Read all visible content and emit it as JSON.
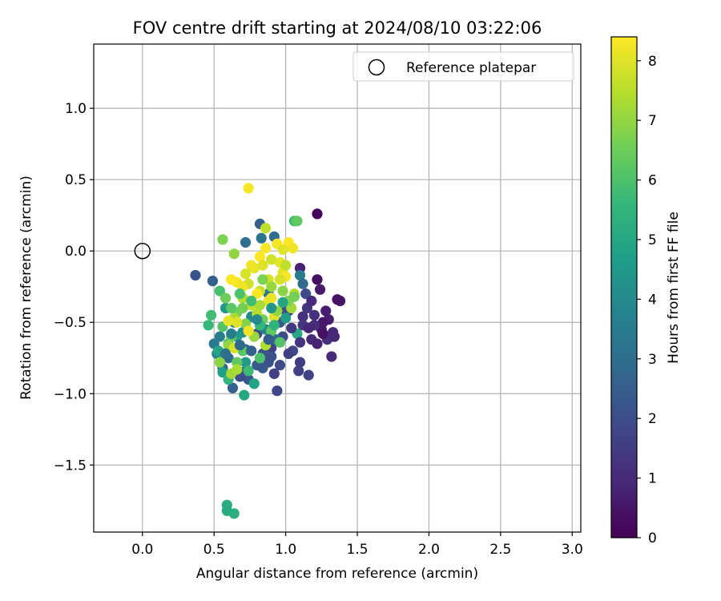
{
  "chart_data": {
    "type": "scatter",
    "title": "FOV centre drift starting at 2024/08/10 03:22:06",
    "xlabel": "Angular distance from reference (arcmin)",
    "ylabel": "Rotation from reference (arcmin)",
    "xlim": [
      -0.34,
      3.06
    ],
    "ylim": [
      -1.97,
      1.45
    ],
    "xticks": [
      0.0,
      0.5,
      1.0,
      1.5,
      2.0,
      2.5,
      3.0
    ],
    "xtick_labels": [
      "0.0",
      "0.5",
      "1.0",
      "1.5",
      "2.0",
      "2.5",
      "3.0"
    ],
    "yticks": [
      1.0,
      0.5,
      0.0,
      -0.5,
      -1.0,
      -1.5
    ],
    "ytick_labels": [
      "1.0",
      "0.5",
      "0.0",
      "−0.5",
      "−1.0",
      "−1.5"
    ],
    "grid": true,
    "legend": {
      "position": "top-right",
      "entries": [
        {
          "label": "Reference platepar",
          "marker": "open-circle"
        }
      ]
    },
    "reference_point": {
      "x": 0.0,
      "y": 0.0,
      "label": "Reference platepar"
    },
    "colorbar": {
      "label": "Hours from first FF file",
      "colormap": "viridis",
      "range": [
        0,
        8.4
      ],
      "ticks": [
        0,
        1,
        2,
        3,
        4,
        5,
        6,
        7,
        8
      ],
      "tick_labels": [
        "0",
        "1",
        "2",
        "3",
        "4",
        "5",
        "6",
        "7",
        "8"
      ]
    },
    "series": [
      {
        "marker": "filled-circle",
        "columns": [
          "x",
          "y",
          "hours"
        ],
        "points": [
          [
            1.22,
            0.26,
            0.1
          ],
          [
            1.38,
            -0.35,
            0.5
          ],
          [
            1.36,
            -0.34,
            0.4
          ],
          [
            1.22,
            -0.2,
            0.3
          ],
          [
            1.24,
            -0.27,
            0.6
          ],
          [
            1.1,
            -0.12,
            0.8
          ],
          [
            1.3,
            -0.48,
            0.7
          ],
          [
            1.33,
            -0.57,
            0.9
          ],
          [
            1.32,
            -0.74,
            1.0
          ],
          [
            1.29,
            -0.62,
            1.1
          ],
          [
            1.25,
            -0.55,
            0.6
          ],
          [
            1.2,
            -0.45,
            1.2
          ],
          [
            1.15,
            -0.4,
            1.3
          ],
          [
            1.12,
            -0.52,
            1.4
          ],
          [
            1.18,
            -0.62,
            1.0
          ],
          [
            1.22,
            -0.65,
            0.8
          ],
          [
            1.1,
            -0.78,
            1.5
          ],
          [
            1.09,
            -0.84,
            1.6
          ],
          [
            1.16,
            -0.87,
            1.7
          ],
          [
            1.05,
            -0.7,
            1.8
          ],
          [
            1.26,
            -0.5,
            0.5
          ],
          [
            1.28,
            -0.42,
            0.7
          ],
          [
            1.14,
            -0.3,
            1.9
          ],
          [
            1.2,
            -0.52,
            1.1
          ],
          [
            1.34,
            -0.6,
            0.9
          ],
          [
            1.26,
            -0.58,
            0.4
          ],
          [
            1.02,
            -0.42,
            1.5
          ],
          [
            0.98,
            -0.6,
            2.0
          ],
          [
            0.94,
            -0.98,
            1.8
          ],
          [
            0.92,
            -0.86,
            1.6
          ],
          [
            0.88,
            -0.78,
            2.1
          ],
          [
            0.84,
            -0.72,
            2.2
          ],
          [
            0.8,
            -0.8,
            2.4
          ],
          [
            0.74,
            -0.9,
            2.3
          ],
          [
            0.7,
            -0.85,
            2.5
          ],
          [
            0.68,
            -0.88,
            2.0
          ],
          [
            0.63,
            -0.96,
            2.6
          ],
          [
            0.56,
            -0.82,
            2.7
          ],
          [
            0.6,
            -0.75,
            2.8
          ],
          [
            0.37,
            -0.17,
            2.2
          ],
          [
            0.49,
            -0.21,
            2.6
          ],
          [
            0.82,
            0.19,
            2.5
          ],
          [
            0.72,
            -0.69,
            2.9
          ],
          [
            0.8,
            -0.58,
            1.9
          ],
          [
            0.9,
            -0.68,
            1.7
          ],
          [
            0.96,
            -0.5,
            2.3
          ],
          [
            1.0,
            -0.42,
            2.0
          ],
          [
            0.72,
            0.06,
            3.0
          ],
          [
            0.83,
            0.09,
            3.2
          ],
          [
            0.92,
            0.1,
            3.0
          ],
          [
            1.1,
            -0.17,
            3.5
          ],
          [
            1.12,
            -0.23,
            2.9
          ],
          [
            0.88,
            -0.3,
            3.3
          ],
          [
            0.54,
            -0.6,
            3.6
          ],
          [
            0.5,
            -0.65,
            3.4
          ],
          [
            0.52,
            -0.72,
            3.8
          ],
          [
            0.86,
            -0.55,
            3.9
          ],
          [
            0.93,
            -0.62,
            3.1
          ],
          [
            0.64,
            -0.5,
            3.7
          ],
          [
            0.76,
            -0.46,
            4.0
          ],
          [
            0.7,
            -0.57,
            4.2
          ],
          [
            0.58,
            -0.4,
            4.4
          ],
          [
            0.66,
            -0.6,
            4.6
          ],
          [
            0.72,
            -0.78,
            4.5
          ],
          [
            0.78,
            -0.93,
            4.8
          ],
          [
            0.71,
            -1.01,
            5.0
          ],
          [
            0.56,
            -0.85,
            4.7
          ],
          [
            0.53,
            -0.7,
            4.9
          ],
          [
            0.59,
            -1.78,
            5.2
          ],
          [
            0.64,
            -1.84,
            5.3
          ],
          [
            0.59,
            -1.82,
            5.1
          ],
          [
            0.6,
            -0.9,
            5.5
          ],
          [
            1.08,
            -0.58,
            5.0
          ],
          [
            1.0,
            -0.47,
            4.6
          ],
          [
            0.46,
            -0.52,
            5.6
          ],
          [
            0.48,
            -0.45,
            5.8
          ],
          [
            0.54,
            -0.28,
            5.9
          ],
          [
            0.6,
            -0.65,
            5.4
          ],
          [
            0.74,
            -0.84,
            5.7
          ],
          [
            0.82,
            -0.75,
            6.0
          ],
          [
            0.7,
            -0.7,
            6.2
          ],
          [
            0.66,
            -0.78,
            6.3
          ],
          [
            0.56,
            -0.53,
            6.1
          ],
          [
            0.62,
            -0.6,
            6.4
          ],
          [
            0.58,
            -0.33,
            6.5
          ],
          [
            0.66,
            -0.43,
            6.6
          ],
          [
            0.72,
            -0.51,
            6.8
          ],
          [
            0.84,
            -0.48,
            6.5
          ],
          [
            0.9,
            -0.56,
            6.3
          ],
          [
            0.96,
            -0.64,
            6.1
          ],
          [
            1.06,
            0.21,
            5.8
          ],
          [
            1.08,
            0.21,
            6.3
          ],
          [
            0.54,
            -0.78,
            6.9
          ],
          [
            0.6,
            -0.66,
            7.0
          ],
          [
            0.56,
            0.08,
            6.7
          ],
          [
            0.64,
            -0.02,
            7.0
          ],
          [
            0.62,
            -0.86,
            7.2
          ],
          [
            0.66,
            -0.83,
            7.3
          ],
          [
            0.78,
            -0.6,
            7.1
          ],
          [
            0.86,
            -0.66,
            7.4
          ],
          [
            0.8,
            -0.44,
            7.5
          ],
          [
            0.76,
            -0.38,
            7.6
          ],
          [
            0.7,
            -0.33,
            7.4
          ],
          [
            0.64,
            -0.47,
            7.3
          ],
          [
            0.74,
            -0.23,
            7.8
          ],
          [
            0.82,
            -0.28,
            7.7
          ],
          [
            0.88,
            -0.2,
            7.9
          ],
          [
            0.86,
            0.16,
            7.6
          ],
          [
            0.98,
            -0.15,
            8.1
          ],
          [
            1.0,
            -0.18,
            8.3
          ],
          [
            1.06,
            -0.3,
            7.5
          ],
          [
            1.04,
            -0.4,
            7.2
          ],
          [
            0.92,
            -0.46,
            8.0
          ],
          [
            0.9,
            -0.33,
            8.2
          ],
          [
            0.96,
            -0.08,
            8.1
          ],
          [
            0.94,
            0.05,
            8.3
          ],
          [
            1.02,
            0.06,
            8.4
          ],
          [
            1.05,
            0.02,
            8.2
          ],
          [
            0.98,
            0.01,
            8.0
          ],
          [
            0.86,
            0.02,
            8.3
          ],
          [
            0.82,
            -0.04,
            8.4
          ],
          [
            0.78,
            -0.12,
            8.1
          ],
          [
            0.66,
            -0.22,
            8.3
          ],
          [
            0.7,
            -0.25,
            8.2
          ],
          [
            0.62,
            -0.2,
            8.4
          ],
          [
            0.66,
            -0.5,
            8.0
          ],
          [
            0.74,
            0.44,
            8.3
          ],
          [
            0.74,
            -0.56,
            8.2
          ],
          [
            0.64,
            -0.68,
            7.9
          ],
          [
            0.6,
            -0.49,
            8.1
          ],
          [
            0.72,
            -0.16,
            7.9
          ],
          [
            0.84,
            -0.1,
            8.0
          ],
          [
            0.9,
            -0.06,
            7.8
          ],
          [
            1.0,
            -0.1,
            7.6
          ],
          [
            0.96,
            -0.2,
            7.9
          ],
          [
            0.88,
            -0.35,
            8.1
          ],
          [
            0.8,
            -0.3,
            8.4
          ],
          [
            0.76,
            -0.1,
            8.2
          ],
          [
            0.82,
            -0.38,
            7.3
          ],
          [
            0.94,
            -0.42,
            7.0
          ],
          [
            1.02,
            -0.35,
            6.8
          ],
          [
            1.06,
            -0.32,
            6.6
          ],
          [
            0.98,
            -0.28,
            6.9
          ],
          [
            0.9,
            -0.25,
            7.1
          ],
          [
            0.84,
            -0.2,
            6.7
          ],
          [
            0.7,
            -0.4,
            6.6
          ],
          [
            0.62,
            -0.4,
            6.2
          ],
          [
            0.68,
            -0.3,
            6.0
          ],
          [
            0.76,
            -0.35,
            5.8
          ],
          [
            0.82,
            -0.52,
            5.6
          ],
          [
            0.92,
            -0.52,
            5.4
          ],
          [
            0.98,
            -0.36,
            4.9
          ],
          [
            0.9,
            -0.4,
            4.4
          ],
          [
            0.8,
            -0.48,
            4.0
          ],
          [
            0.62,
            -0.58,
            3.6
          ],
          [
            0.58,
            -0.72,
            3.1
          ],
          [
            0.68,
            -0.66,
            2.8
          ],
          [
            0.76,
            -0.7,
            2.6
          ],
          [
            0.88,
            -0.62,
            2.4
          ],
          [
            1.04,
            -0.54,
            1.4
          ],
          [
            1.12,
            -0.46,
            1.2
          ],
          [
            1.18,
            -0.35,
            1.0
          ],
          [
            1.16,
            -0.54,
            0.9
          ],
          [
            1.1,
            -0.64,
            1.3
          ],
          [
            1.02,
            -0.72,
            1.6
          ],
          [
            0.96,
            -0.8,
            1.9
          ],
          [
            0.9,
            -0.74,
            2.1
          ],
          [
            0.84,
            -0.82,
            2.3
          ]
        ]
      }
    ]
  }
}
